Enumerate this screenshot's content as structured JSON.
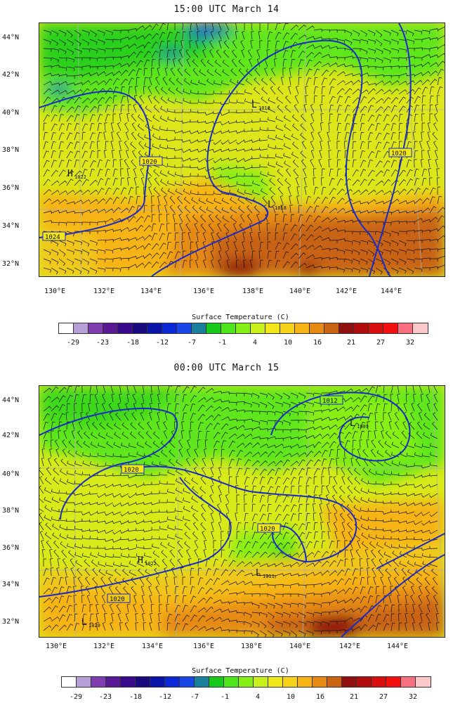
{
  "panels": [
    {
      "title": "15:00 UTC March 14",
      "lat_labels": [
        "44°N",
        "42°N",
        "40°N",
        "38°N",
        "36°N",
        "34°N",
        "32°N"
      ],
      "lon_labels": [
        "130°E",
        "132°E",
        "134°E",
        "136°E",
        "138°E",
        "140°E",
        "142°E",
        "144°E"
      ],
      "colorbar_title": "Surface Temperature (C)",
      "colorbar_ticks": [
        "-29",
        "-23",
        "-18",
        "-12",
        "-7",
        "-1",
        "4",
        "10",
        "16",
        "21",
        "27",
        "32"
      ],
      "contour_labels": [
        "1020",
        "1020",
        "1024",
        "1020"
      ],
      "pressure_centers": [
        {
          "type": "L",
          "value": "1016"
        },
        {
          "type": "H",
          "value": "1022"
        },
        {
          "type": "L",
          "value": "1018"
        }
      ]
    },
    {
      "title": "00:00 UTC March 15",
      "lat_labels": [
        "44°N",
        "42°N",
        "40°N",
        "38°N",
        "36°N",
        "34°N",
        "32°N"
      ],
      "lon_labels": [
        "130°E",
        "132°E",
        "134°E",
        "136°E",
        "138°E",
        "140°E",
        "142°E",
        "144°E"
      ],
      "colorbar_title": "Surface Temperature (C)",
      "colorbar_ticks": [
        "-29",
        "-23",
        "-18",
        "-12",
        "-7",
        "-1",
        "4",
        "10",
        "16",
        "21",
        "27",
        "32"
      ],
      "contour_labels": [
        "1020",
        "1012",
        "1020",
        "1020"
      ],
      "pressure_centers": [
        {
          "type": "L",
          "value": "1009"
        },
        {
          "type": "H",
          "value": "1022"
        },
        {
          "type": "L",
          "value": "1011"
        },
        {
          "type": "L",
          "value": "1020"
        }
      ]
    }
  ],
  "colorbar_colors": [
    "#ffffff",
    "#b7a0d8",
    "#7f3fb0",
    "#5a1a96",
    "#3a0a8c",
    "#1a0a80",
    "#0a14a8",
    "#0a28d8",
    "#1a46e8",
    "#1a7f9a",
    "#18c81a",
    "#4ee61a",
    "#86ef18",
    "#c8f01a",
    "#f0e61a",
    "#f8d21a",
    "#f7b418",
    "#e68a14",
    "#c86414",
    "#901010",
    "#b00c0c",
    "#d80e0e",
    "#f41010",
    "#f87080",
    "#fac8c8"
  ]
}
